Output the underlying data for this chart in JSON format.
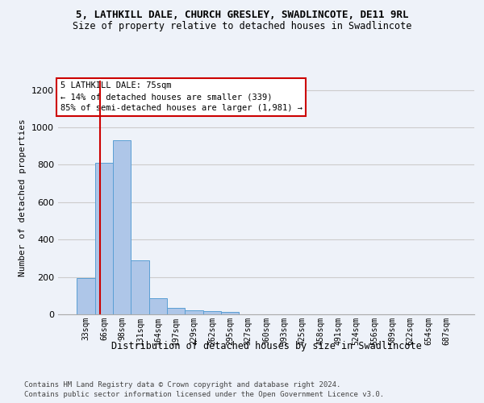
{
  "title_line1": "5, LATHKILL DALE, CHURCH GRESLEY, SWADLINCOTE, DE11 9RL",
  "title_line2": "Size of property relative to detached houses in Swadlincote",
  "xlabel": "Distribution of detached houses by size in Swadlincote",
  "ylabel": "Number of detached properties",
  "bin_labels": [
    "33sqm",
    "66sqm",
    "98sqm",
    "131sqm",
    "164sqm",
    "197sqm",
    "229sqm",
    "262sqm",
    "295sqm",
    "327sqm",
    "360sqm",
    "393sqm",
    "425sqm",
    "458sqm",
    "491sqm",
    "524sqm",
    "556sqm",
    "589sqm",
    "622sqm",
    "654sqm",
    "687sqm"
  ],
  "bar_values": [
    195,
    810,
    930,
    290,
    85,
    35,
    20,
    18,
    12,
    0,
    0,
    0,
    0,
    0,
    0,
    0,
    0,
    0,
    0,
    0,
    0
  ],
  "bar_color": "#aec6e8",
  "bar_edge_color": "#5a9fd4",
  "ylim": [
    0,
    1250
  ],
  "yticks": [
    0,
    200,
    400,
    600,
    800,
    1000,
    1200
  ],
  "annotation_text": "5 LATHKILL DALE: 75sqm\n← 14% of detached houses are smaller (339)\n85% of semi-detached houses are larger (1,981) →",
  "annotation_box_color": "#ffffff",
  "annotation_box_edge": "#cc0000",
  "footnote_line1": "Contains HM Land Registry data © Crown copyright and database right 2024.",
  "footnote_line2": "Contains public sector information licensed under the Open Government Licence v3.0.",
  "marker_line_color": "#cc0000",
  "background_color": "#eef2f9",
  "grid_color": "#cccccc",
  "title1_fontsize": 9,
  "title2_fontsize": 8.5,
  "ylabel_fontsize": 8,
  "xlabel_fontsize": 8.5,
  "tick_fontsize": 7,
  "annotation_fontsize": 7.5,
  "footnote_fontsize": 6.5
}
